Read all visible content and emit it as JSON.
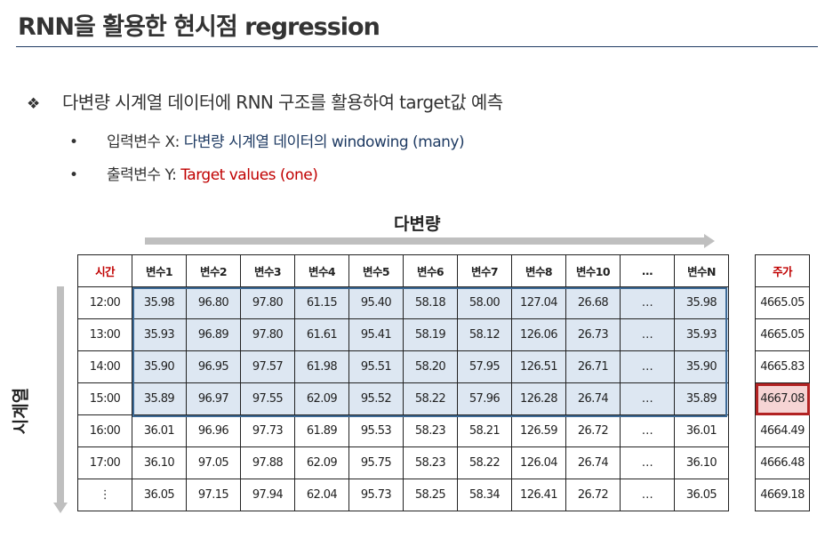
{
  "slide": {
    "title": "RNN을 활용한 현시점 regression",
    "main_bullet_mark": "❖",
    "main_bullet": "다변량 시계열 데이터에 RNN 구조를 활용하여 target값 예측",
    "sub_x_prefix": "입력변수 X: ",
    "sub_x_value": "다변량 시계열 데이터의 windowing (many)",
    "sub_y_prefix": "출력변수 Y: ",
    "sub_y_value": "Target values (one)",
    "sub_bullet_mark": "•"
  },
  "diagram": {
    "horizontal_label": "다변량",
    "vertical_label": "시계열"
  },
  "table": {
    "time_header": "시간",
    "headers": [
      "변수1",
      "변수2",
      "변수3",
      "변수4",
      "변수5",
      "변수6",
      "변수7",
      "변수8",
      "변수10",
      "…",
      "변수N"
    ],
    "target_header": "주가",
    "rows": [
      {
        "time": "12:00",
        "values": [
          "35.98",
          "96.80",
          "97.80",
          "61.15",
          "95.40",
          "58.18",
          "58.00",
          "127.04",
          "26.68",
          "…",
          "35.98"
        ],
        "target": "4665.05"
      },
      {
        "time": "13:00",
        "values": [
          "35.93",
          "96.89",
          "97.80",
          "61.61",
          "95.41",
          "58.19",
          "58.12",
          "126.06",
          "26.73",
          "…",
          "35.93"
        ],
        "target": "4665.05"
      },
      {
        "time": "14:00",
        "values": [
          "35.90",
          "96.95",
          "97.57",
          "61.98",
          "95.51",
          "58.20",
          "57.95",
          "126.51",
          "26.71",
          "…",
          "35.90"
        ],
        "target": "4665.83"
      },
      {
        "time": "15:00",
        "values": [
          "35.89",
          "96.97",
          "97.55",
          "62.09",
          "95.52",
          "58.22",
          "57.96",
          "126.28",
          "26.74",
          "…",
          "35.89"
        ],
        "target": "4667.08"
      },
      {
        "time": "16:00",
        "values": [
          "36.01",
          "96.96",
          "97.73",
          "61.89",
          "95.53",
          "58.23",
          "58.21",
          "126.59",
          "26.72",
          "…",
          "36.01"
        ],
        "target": "4664.49"
      },
      {
        "time": "17:00",
        "values": [
          "36.10",
          "97.05",
          "97.88",
          "62.09",
          "95.75",
          "58.23",
          "58.22",
          "126.04",
          "26.74",
          "…",
          "36.10"
        ],
        "target": "4666.48"
      },
      {
        "time": "⋮",
        "values": [
          "36.05",
          "97.15",
          "97.94",
          "62.04",
          "95.73",
          "58.25",
          "58.34",
          "126.41",
          "26.72",
          "…",
          "36.05"
        ],
        "target": "4669.18"
      }
    ],
    "window_rows": 4,
    "target_row_index": 3
  },
  "colors": {
    "window_fill": "#dde7f2",
    "window_border": "#3d6a96",
    "target_fill": "#f6d4d4",
    "target_border": "#b22222",
    "accent_red": "#c00000",
    "accent_blue": "#1f3b63"
  }
}
